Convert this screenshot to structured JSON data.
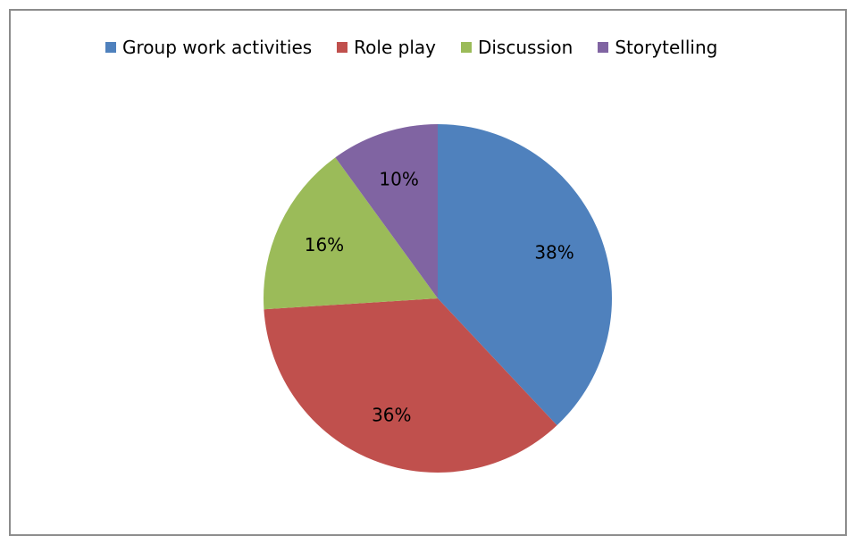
{
  "chart_data": {
    "type": "pie",
    "title": "",
    "legend_position": "top",
    "categories": [
      "Group work activities",
      "Role play",
      "Discussion",
      "Storytelling"
    ],
    "values": [
      38,
      36,
      16,
      10
    ],
    "labels": [
      "38%",
      "36%",
      "16%",
      "10%"
    ],
    "colors": [
      "#4f81bd",
      "#c0504d",
      "#9bbb59",
      "#8064a2"
    ]
  }
}
